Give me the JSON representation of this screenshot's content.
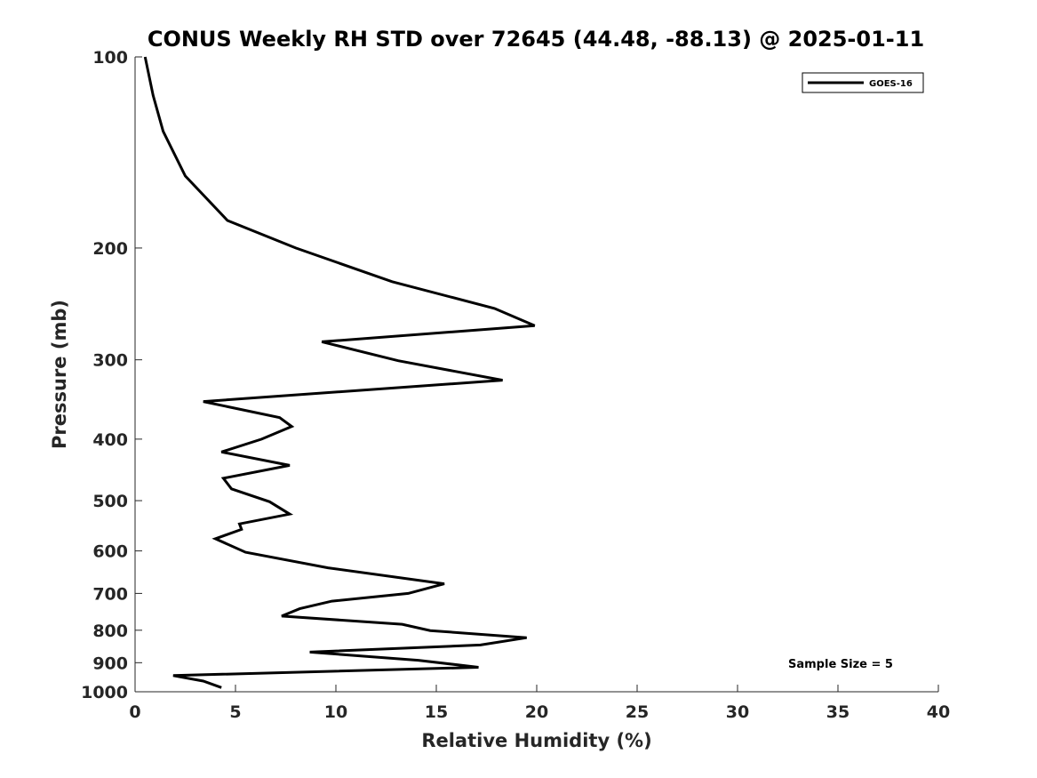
{
  "chart_data": {
    "type": "line",
    "title": "CONUS Weekly RH STD over 72645 (44.48, -88.13) @ 2025-01-11",
    "xlabel": "Relative Humidity (%)",
    "ylabel": "Pressure (mb)",
    "xlim": [
      0,
      40
    ],
    "ylim": [
      1000,
      100
    ],
    "y_scale": "log",
    "y_reversed": true,
    "x_ticks": [
      0,
      5,
      10,
      15,
      20,
      25,
      30,
      35,
      40
    ],
    "y_ticks": [
      100,
      200,
      300,
      400,
      500,
      600,
      700,
      800,
      900,
      1000
    ],
    "grid": false,
    "legend_position": "top-right",
    "annotation": "Sample Size = 5",
    "series": [
      {
        "name": "GOES-16",
        "color": "#000000",
        "x": [
          0.5,
          0.9,
          1.4,
          2.5,
          4.6,
          8.0,
          12.8,
          17.9,
          19.9,
          9.3,
          13.1,
          18.3,
          3.4,
          7.2,
          7.8,
          6.3,
          4.3,
          7.7,
          4.4,
          4.8,
          6.7,
          7.7,
          5.2,
          5.3,
          4.0,
          5.5,
          9.6,
          15.4,
          13.6,
          9.8,
          8.2,
          7.3,
          13.3,
          14.7,
          19.5,
          17.2,
          8.7,
          14.1,
          17.1,
          1.9,
          3.4,
          4.3
        ],
        "y": [
          100,
          115,
          131,
          154,
          181,
          200,
          226,
          249,
          265,
          281,
          301,
          323,
          349,
          370,
          382,
          400,
          419,
          440,
          461,
          479,
          502,
          525,
          544,
          555,
          574,
          603,
          638,
          676,
          700,
          720,
          740,
          760,
          783,
          801,
          822,
          844,
          866,
          892,
          915,
          943,
          962,
          985
        ]
      }
    ]
  }
}
